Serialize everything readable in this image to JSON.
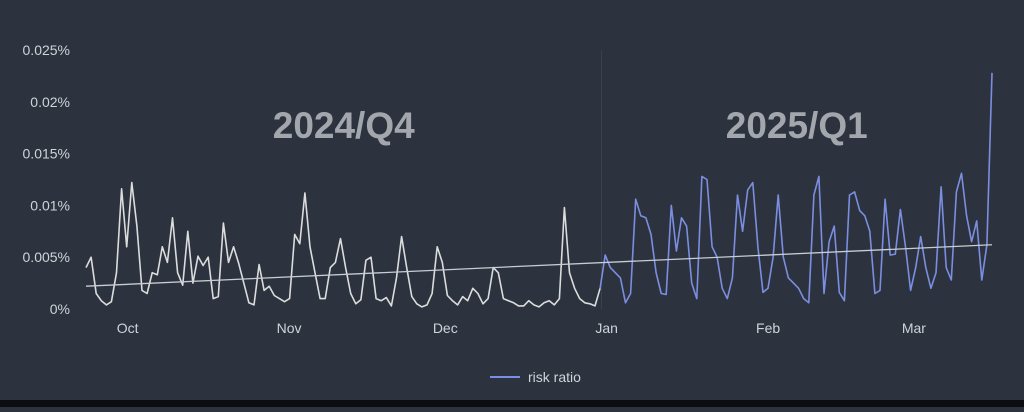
{
  "chart_data": {
    "type": "line",
    "title": "",
    "xlabel": "",
    "ylabel": "",
    "x_start": "2024-09-23",
    "x_end": "2025-03-16",
    "ylim": [
      0,
      0.025
    ],
    "y_ticks": [
      0,
      0.005,
      0.01,
      0.015,
      0.02,
      0.025
    ],
    "y_tick_labels": [
      "0%",
      "0.005%",
      "0.01%",
      "0.015%",
      "0.02%",
      "0.025%"
    ],
    "x_ticks": [
      {
        "date": "2024-10-01",
        "label": "Oct"
      },
      {
        "date": "2024-11-01",
        "label": "Nov"
      },
      {
        "date": "2024-12-01",
        "label": "Dec"
      },
      {
        "date": "2025-01-01",
        "label": "Jan"
      },
      {
        "date": "2025-02-01",
        "label": "Feb"
      },
      {
        "date": "2025-03-01",
        "label": "Mar"
      }
    ],
    "grid": false,
    "legend_position": "bottom-center",
    "regions": [
      {
        "label": "2024/Q4",
        "start": "2024-09-23",
        "end": "2024-12-31"
      },
      {
        "label": "2025/Q1",
        "start": "2024-12-31",
        "end": "2025-03-16"
      }
    ],
    "trendline": {
      "start": [
        "2024-09-23",
        0.0022
      ],
      "end": [
        "2025-03-16",
        0.0062
      ]
    },
    "series": [
      {
        "name": "risk ratio",
        "color_q4": "#dcdcdc",
        "color_q1": "#7b8ee0",
        "values": [
          0.004,
          0.005,
          0.0015,
          0.0008,
          0.0004,
          0.0007,
          0.0035,
          0.0116,
          0.006,
          0.0122,
          0.008,
          0.0018,
          0.0015,
          0.0035,
          0.0033,
          0.006,
          0.0045,
          0.0088,
          0.0035,
          0.0023,
          0.0075,
          0.0025,
          0.0051,
          0.0042,
          0.005,
          0.001,
          0.0012,
          0.0083,
          0.0045,
          0.006,
          0.0044,
          0.0025,
          0.0006,
          0.0004,
          0.0043,
          0.0018,
          0.0022,
          0.0013,
          0.001,
          0.0007,
          0.001,
          0.0072,
          0.0063,
          0.0112,
          0.006,
          0.0035,
          0.001,
          0.001,
          0.004,
          0.0045,
          0.0068,
          0.004,
          0.0015,
          0.0005,
          0.0009,
          0.0047,
          0.005,
          0.001,
          0.0008,
          0.0011,
          0.0003,
          0.003,
          0.007,
          0.004,
          0.0012,
          0.0005,
          0.0002,
          0.0004,
          0.0015,
          0.006,
          0.0045,
          0.0013,
          0.0008,
          0.0004,
          0.0012,
          0.0008,
          0.002,
          0.0015,
          0.0005,
          0.001,
          0.004,
          0.0035,
          0.001,
          0.0008,
          0.0006,
          0.0003,
          0.0003,
          0.0008,
          0.0004,
          0.0002,
          0.0006,
          0.0008,
          0.0004,
          0.001,
          0.0098,
          0.0035,
          0.002,
          0.001,
          0.0006,
          0.0005,
          0.0003,
          0.002,
          0.0052,
          0.004,
          0.0035,
          0.003,
          0.0006,
          0.0015,
          0.0106,
          0.009,
          0.0088,
          0.0072,
          0.0035,
          0.0015,
          0.0014,
          0.01,
          0.0056,
          0.0088,
          0.008,
          0.0025,
          0.001,
          0.0128,
          0.0125,
          0.006,
          0.005,
          0.002,
          0.001,
          0.003,
          0.011,
          0.0075,
          0.0115,
          0.0122,
          0.006,
          0.0016,
          0.002,
          0.005,
          0.011,
          0.005,
          0.003,
          0.0025,
          0.002,
          0.001,
          0.0006,
          0.011,
          0.0128,
          0.0015,
          0.0065,
          0.008,
          0.0016,
          0.0008,
          0.011,
          0.0113,
          0.0095,
          0.009,
          0.0075,
          0.0015,
          0.0018,
          0.0106,
          0.0052,
          0.0053,
          0.0096,
          0.006,
          0.0018,
          0.004,
          0.007,
          0.004,
          0.002,
          0.0035,
          0.0118,
          0.004,
          0.0028,
          0.0113,
          0.0131,
          0.009,
          0.0065,
          0.0085,
          0.0028,
          0.0062,
          0.0228
        ]
      }
    ]
  }
}
